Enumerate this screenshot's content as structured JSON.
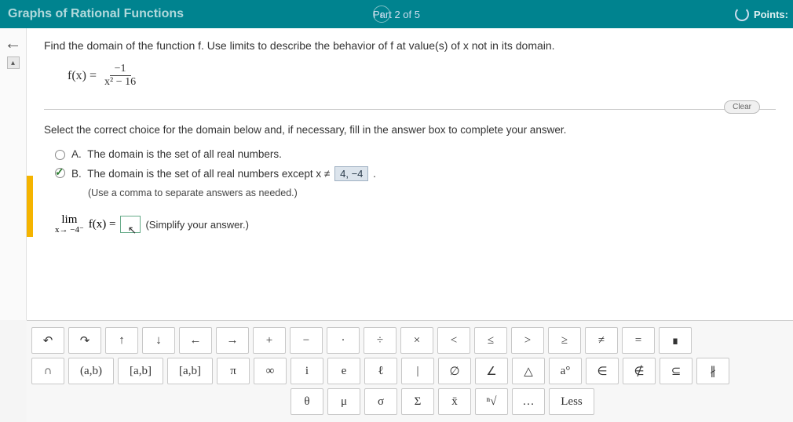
{
  "header": {
    "title": "Graphs of Rational Functions",
    "progress": "Part 2 of 5",
    "points_label": "Points:"
  },
  "question": {
    "prompt": "Find the domain of the function f. Use limits to describe the behavior of f at value(s) of x not in its domain.",
    "fx_label": "f(x) =",
    "numerator": "−1",
    "denominator": "x² − 16",
    "clear_label": "Clear"
  },
  "instruction": "Select the correct choice for the domain below and, if necessary, fill in the answer box to complete your answer.",
  "choices": {
    "a": {
      "letter": "A.",
      "text": "The domain is the set of all real numbers.",
      "selected": false
    },
    "b": {
      "letter": "B.",
      "text_before": "The domain is the set of all real numbers except x ≠",
      "answer": "4, −4",
      "text_after": ".",
      "hint": "(Use a comma to separate answers as needed.)",
      "selected": true
    }
  },
  "limit": {
    "lim": "lim",
    "approach": "x→ −4⁻",
    "fx": "f(x) =",
    "note": "(Simplify your answer.)"
  },
  "keyboard": {
    "rows": [
      [
        "↶",
        "↷",
        "↑",
        "↓",
        "←",
        "→",
        "+",
        "−",
        "·",
        "÷",
        "×",
        "<",
        "≤",
        ">",
        "≥",
        "≠",
        "=",
        "∎"
      ],
      [
        "∩",
        "(a,b)",
        "[a,b]",
        "[a,b]",
        "π",
        "∞",
        "i",
        "e",
        "ℓ",
        "|",
        "∅",
        "∠",
        "△",
        "a°",
        "∈",
        "∉",
        "⊆",
        "∦"
      ],
      [
        "θ",
        "μ",
        "σ",
        "Σ",
        "x̄",
        "ⁿ√",
        "…",
        "Less"
      ]
    ],
    "row3_offset": true
  },
  "colors": {
    "header_bg": "#00838f",
    "accent": "#f5b400",
    "answer_bg": "#dce4ec"
  }
}
